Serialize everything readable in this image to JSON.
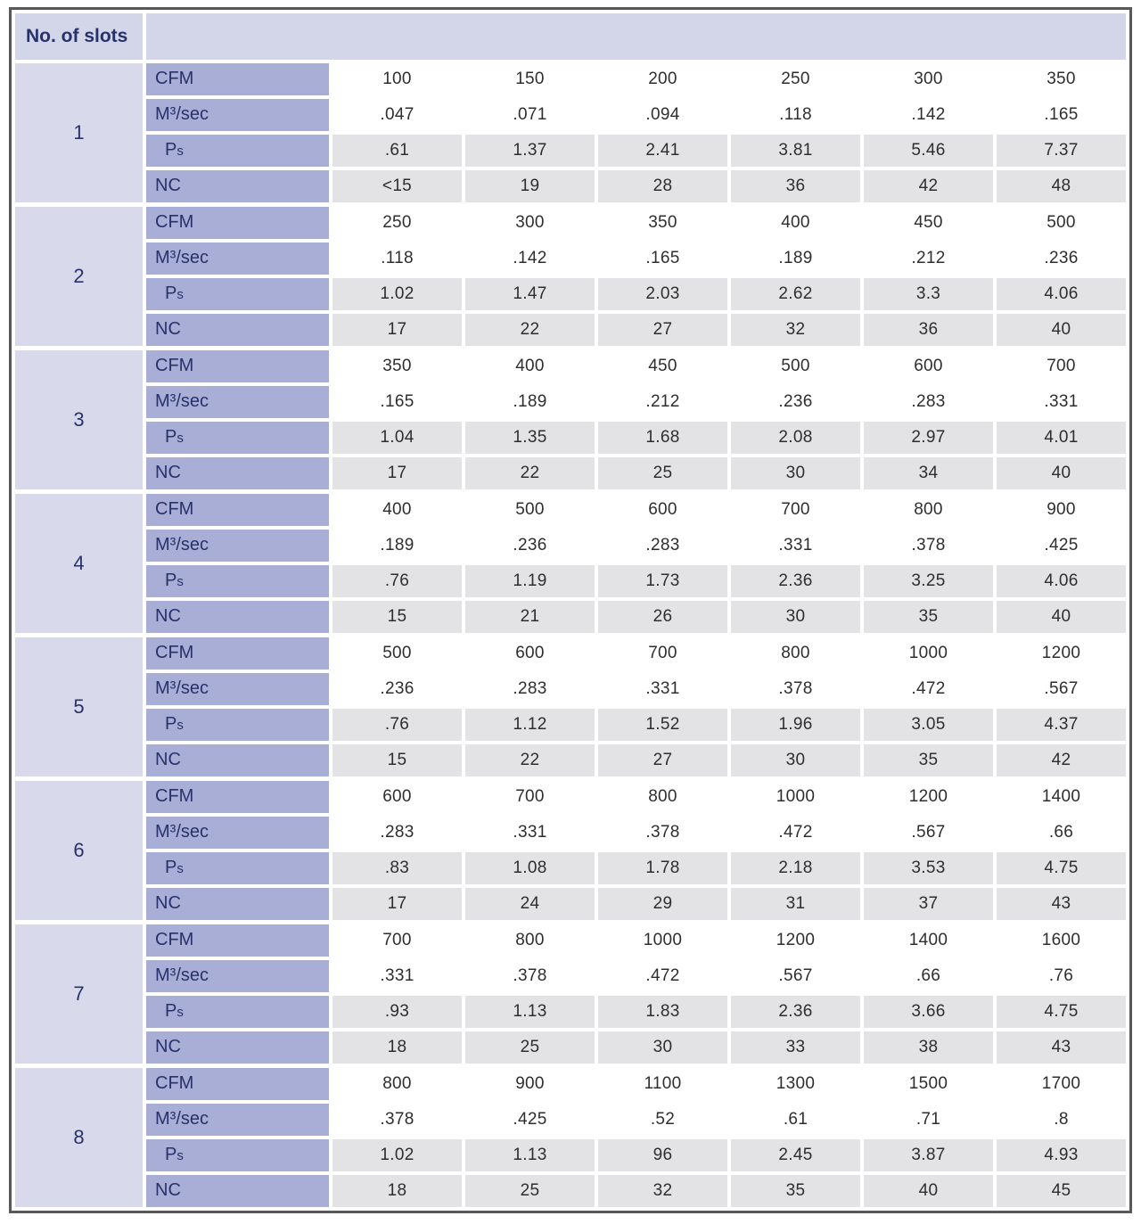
{
  "table": {
    "header": {
      "no_of_slots": "No. of slots"
    },
    "row_labels": [
      {
        "key": "cfm",
        "main": "CFM",
        "sub": ""
      },
      {
        "key": "m3sec",
        "main": "M³/sec",
        "sub": ""
      },
      {
        "key": "ps",
        "main": "P",
        "sub": "s"
      },
      {
        "key": "nc",
        "main": "NC",
        "sub": ""
      }
    ],
    "groups": [
      {
        "slots": "1",
        "rows": [
          [
            "100",
            "150",
            "200",
            "250",
            "300",
            "350"
          ],
          [
            ".047",
            ".071",
            ".094",
            ".118",
            ".142",
            ".165"
          ],
          [
            ".61",
            "1.37",
            "2.41",
            "3.81",
            "5.46",
            "7.37"
          ],
          [
            "<15",
            "19",
            "28",
            "36",
            "42",
            "48"
          ]
        ]
      },
      {
        "slots": "2",
        "rows": [
          [
            "250",
            "300",
            "350",
            "400",
            "450",
            "500"
          ],
          [
            ".118",
            ".142",
            ".165",
            ".189",
            ".212",
            ".236"
          ],
          [
            "1.02",
            "1.47",
            "2.03",
            "2.62",
            "3.3",
            "4.06"
          ],
          [
            "17",
            "22",
            "27",
            "32",
            "36",
            "40"
          ]
        ]
      },
      {
        "slots": "3",
        "rows": [
          [
            "350",
            "400",
            "450",
            "500",
            "600",
            "700"
          ],
          [
            ".165",
            ".189",
            ".212",
            ".236",
            ".283",
            ".331"
          ],
          [
            "1.04",
            "1.35",
            "1.68",
            "2.08",
            "2.97",
            "4.01"
          ],
          [
            "17",
            "22",
            "25",
            "30",
            "34",
            "40"
          ]
        ]
      },
      {
        "slots": "4",
        "rows": [
          [
            "400",
            "500",
            "600",
            "700",
            "800",
            "900"
          ],
          [
            ".189",
            ".236",
            ".283",
            ".331",
            ".378",
            ".425"
          ],
          [
            ".76",
            "1.19",
            "1.73",
            "2.36",
            "3.25",
            "4.06"
          ],
          [
            "15",
            "21",
            "26",
            "30",
            "35",
            "40"
          ]
        ]
      },
      {
        "slots": "5",
        "rows": [
          [
            "500",
            "600",
            "700",
            "800",
            "1000",
            "1200"
          ],
          [
            ".236",
            ".283",
            ".331",
            ".378",
            ".472",
            ".567"
          ],
          [
            ".76",
            "1.12",
            "1.52",
            "1.96",
            "3.05",
            "4.37"
          ],
          [
            "15",
            "22",
            "27",
            "30",
            "35",
            "42"
          ]
        ]
      },
      {
        "slots": "6",
        "rows": [
          [
            "600",
            "700",
            "800",
            "1000",
            "1200",
            "1400"
          ],
          [
            ".283",
            ".331",
            ".378",
            ".472",
            ".567",
            ".66"
          ],
          [
            ".83",
            "1.08",
            "1.78",
            "2.18",
            "3.53",
            "4.75"
          ],
          [
            "17",
            "24",
            "29",
            "31",
            "37",
            "43"
          ]
        ]
      },
      {
        "slots": "7",
        "rows": [
          [
            "700",
            "800",
            "1000",
            "1200",
            "1400",
            "1600"
          ],
          [
            ".331",
            ".378",
            ".472",
            ".567",
            ".66",
            ".76"
          ],
          [
            ".93",
            "1.13",
            "1.83",
            "2.36",
            "3.66",
            "4.75"
          ],
          [
            "18",
            "25",
            "30",
            "33",
            "38",
            "43"
          ]
        ]
      },
      {
        "slots": "8",
        "rows": [
          [
            "800",
            "900",
            "1100",
            "1300",
            "1500",
            "1700"
          ],
          [
            ".378",
            ".425",
            ".52",
            ".61",
            ".71",
            ".8"
          ],
          [
            "1.02",
            "1.13",
            "96",
            "2.45",
            "3.87",
            "4.93"
          ],
          [
            "18",
            "25",
            "32",
            "35",
            "40",
            "45"
          ]
        ]
      }
    ]
  },
  "colors": {
    "header_bg": "#d3d6e8",
    "slot_col_bg": "#d8daeb",
    "label_bg": "#a9aed6",
    "plain_value_bg": "#ffffff",
    "shaded_value_bg": "#e3e3e5",
    "text_navy": "#27326a",
    "text_value": "#2e2e30",
    "frame_border": "#58585b"
  }
}
